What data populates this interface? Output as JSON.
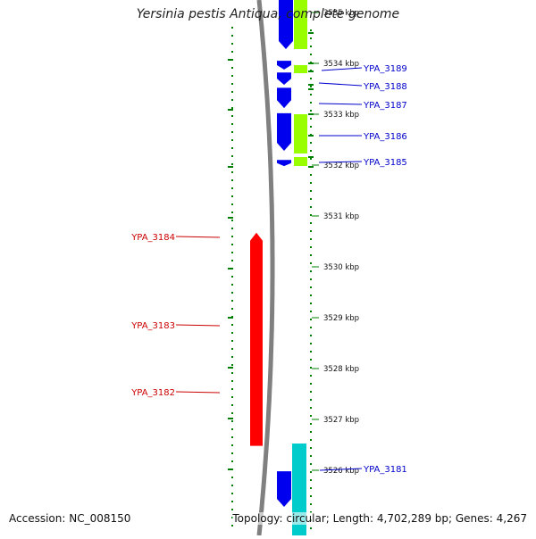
{
  "title": "Yersinia pestis Antiqua, complete genome",
  "accession": "Accession: NC_008150",
  "summary": "Topology: circular; Length: 4,702,289 bp; Genes: 4,267",
  "colors": {
    "backbone": "#808080",
    "forward_gene": "#ff0000",
    "forward_label": "#cc0000",
    "reverse_gene": "#0000ee",
    "reverse_label": "#0000cc",
    "cds_feature": "#99ff00",
    "rna_feature": "#00cccc",
    "gc_dots": "#008000",
    "tick": "#008000"
  },
  "ticks": [
    "3535 kbp",
    "3534 kbp",
    "3533 kbp",
    "3532 kbp",
    "3531 kbp",
    "3530 kbp",
    "3529 kbp",
    "3528 kbp",
    "3527 kbp",
    "3526 kbp"
  ],
  "forward_genes": [
    {
      "label": "YPA_3184",
      "start_kbp": 3526.48,
      "end_kbp": 3530.67
    },
    {
      "label": "YPA_3183",
      "start_kbp": 3528.67,
      "end_kbp": 3529.67
    },
    {
      "label": "YPA_3182",
      "start_kbp": 3527.38,
      "end_kbp": 3528.71
    }
  ],
  "reverse_genes": [
    {
      "label": "YPA_3189",
      "start_kbp": 3534.05,
      "end_kbp": 3533.88
    },
    {
      "label": "YPA_3188",
      "start_kbp": 3533.82,
      "end_kbp": 3533.58
    },
    {
      "label": "YPA_3187",
      "start_kbp": 3533.52,
      "end_kbp": 3533.12
    },
    {
      "label": "YPA_3186",
      "start_kbp": 3533.02,
      "end_kbp": 3532.28
    },
    {
      "label": "YPA_3185",
      "start_kbp": 3532.1,
      "end_kbp": 3531.98
    },
    {
      "label": "YPA_3181",
      "start_kbp": 3525.98,
      "end_kbp": 3525.28
    }
  ]
}
